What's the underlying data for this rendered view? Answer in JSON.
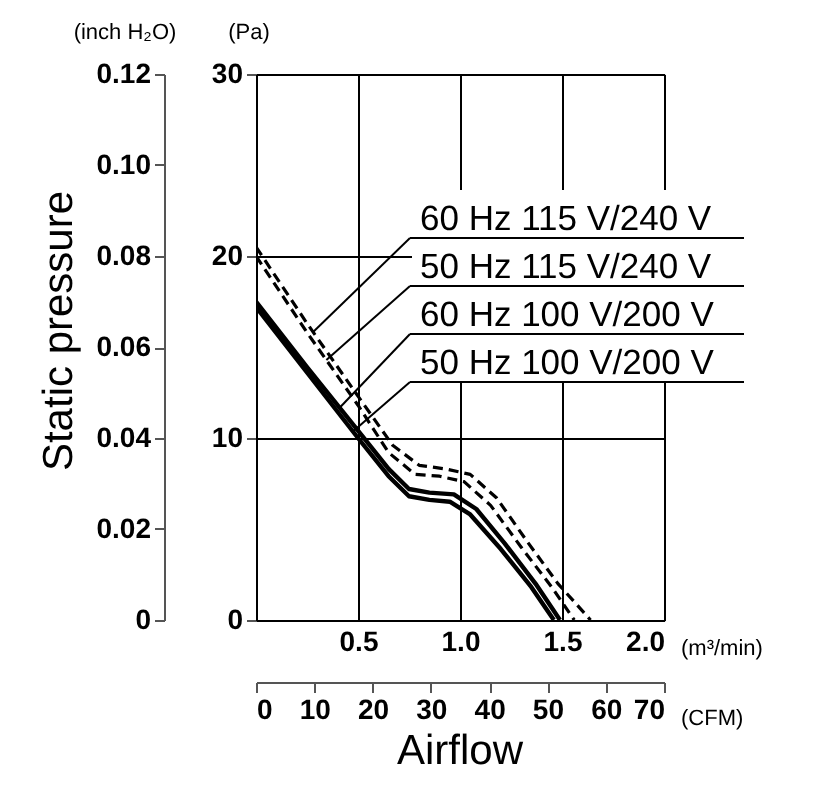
{
  "chart_data": {
    "type": "line",
    "xlabel": "(m³/min)",
    "ylabel": "(Pa)",
    "x2label": "(CFM)",
    "y2label": "(inch H₂O)",
    "annotations": [
      "Airflow",
      "Static pressure"
    ],
    "xlim": [
      0,
      2
    ],
    "xticks": [
      0.5,
      {
        "value": 1,
        "label": "1.0"
      },
      1.5,
      {
        "value": 2,
        "label": "2.0"
      }
    ],
    "ylim": [
      0,
      30
    ],
    "yticks": [
      0,
      10,
      20,
      30
    ],
    "x2lim": [
      0,
      70
    ],
    "x2ticks": [
      0,
      10,
      20,
      30,
      40,
      50,
      60,
      70
    ],
    "y2lim": [
      0,
      0.12
    ],
    "y2ticks": [
      0,
      0.02,
      0.04,
      0.06,
      0.08,
      {
        "value": 0.1,
        "label": "0.10"
      },
      0.12
    ],
    "grid": true,
    "legend": "top right",
    "series": [
      {
        "name": "60 Hz 115 V/240 V",
        "color": "#000000",
        "line_style": "dashed",
        "x": [
          0,
          0.25,
          0.5,
          0.67,
          0.8,
          0.93,
          1.05,
          1.18,
          1.33,
          1.48,
          1.64
        ],
        "values": [
          20.5,
          16.3,
          12.3,
          9.6,
          8.5,
          8.3,
          8.0,
          6.7,
          4.3,
          2.0,
          0
        ]
      },
      {
        "name": "50 Hz 115 V/240 V",
        "color": "#000000",
        "line_style": "dashed",
        "x": [
          0,
          0.25,
          0.5,
          0.65,
          0.78,
          0.9,
          1.02,
          1.15,
          1.3,
          1.45,
          1.56
        ],
        "values": [
          20.0,
          15.8,
          11.8,
          9.2,
          8.0,
          7.9,
          7.6,
          6.3,
          4.0,
          1.8,
          0
        ]
      },
      {
        "name": "60 Hz 100 V/200 V",
        "color": "#000000",
        "line_style": "solid",
        "x": [
          0,
          0.25,
          0.5,
          0.65,
          0.75,
          0.85,
          0.97,
          1.08,
          1.22,
          1.37,
          1.49
        ],
        "values": [
          17.5,
          13.9,
          10.4,
          8.3,
          7.2,
          7.0,
          6.9,
          6.1,
          4.2,
          2.0,
          0
        ]
      },
      {
        "name": "50 Hz 100 V/200 V",
        "color": "#000000",
        "line_style": "solid",
        "x": [
          0,
          0.25,
          0.5,
          0.65,
          0.75,
          0.85,
          0.95,
          1.05,
          1.2,
          1.35,
          1.46
        ],
        "values": [
          17.2,
          13.6,
          10.0,
          7.9,
          6.8,
          6.6,
          6.5,
          5.8,
          3.9,
          1.8,
          0
        ]
      }
    ]
  }
}
